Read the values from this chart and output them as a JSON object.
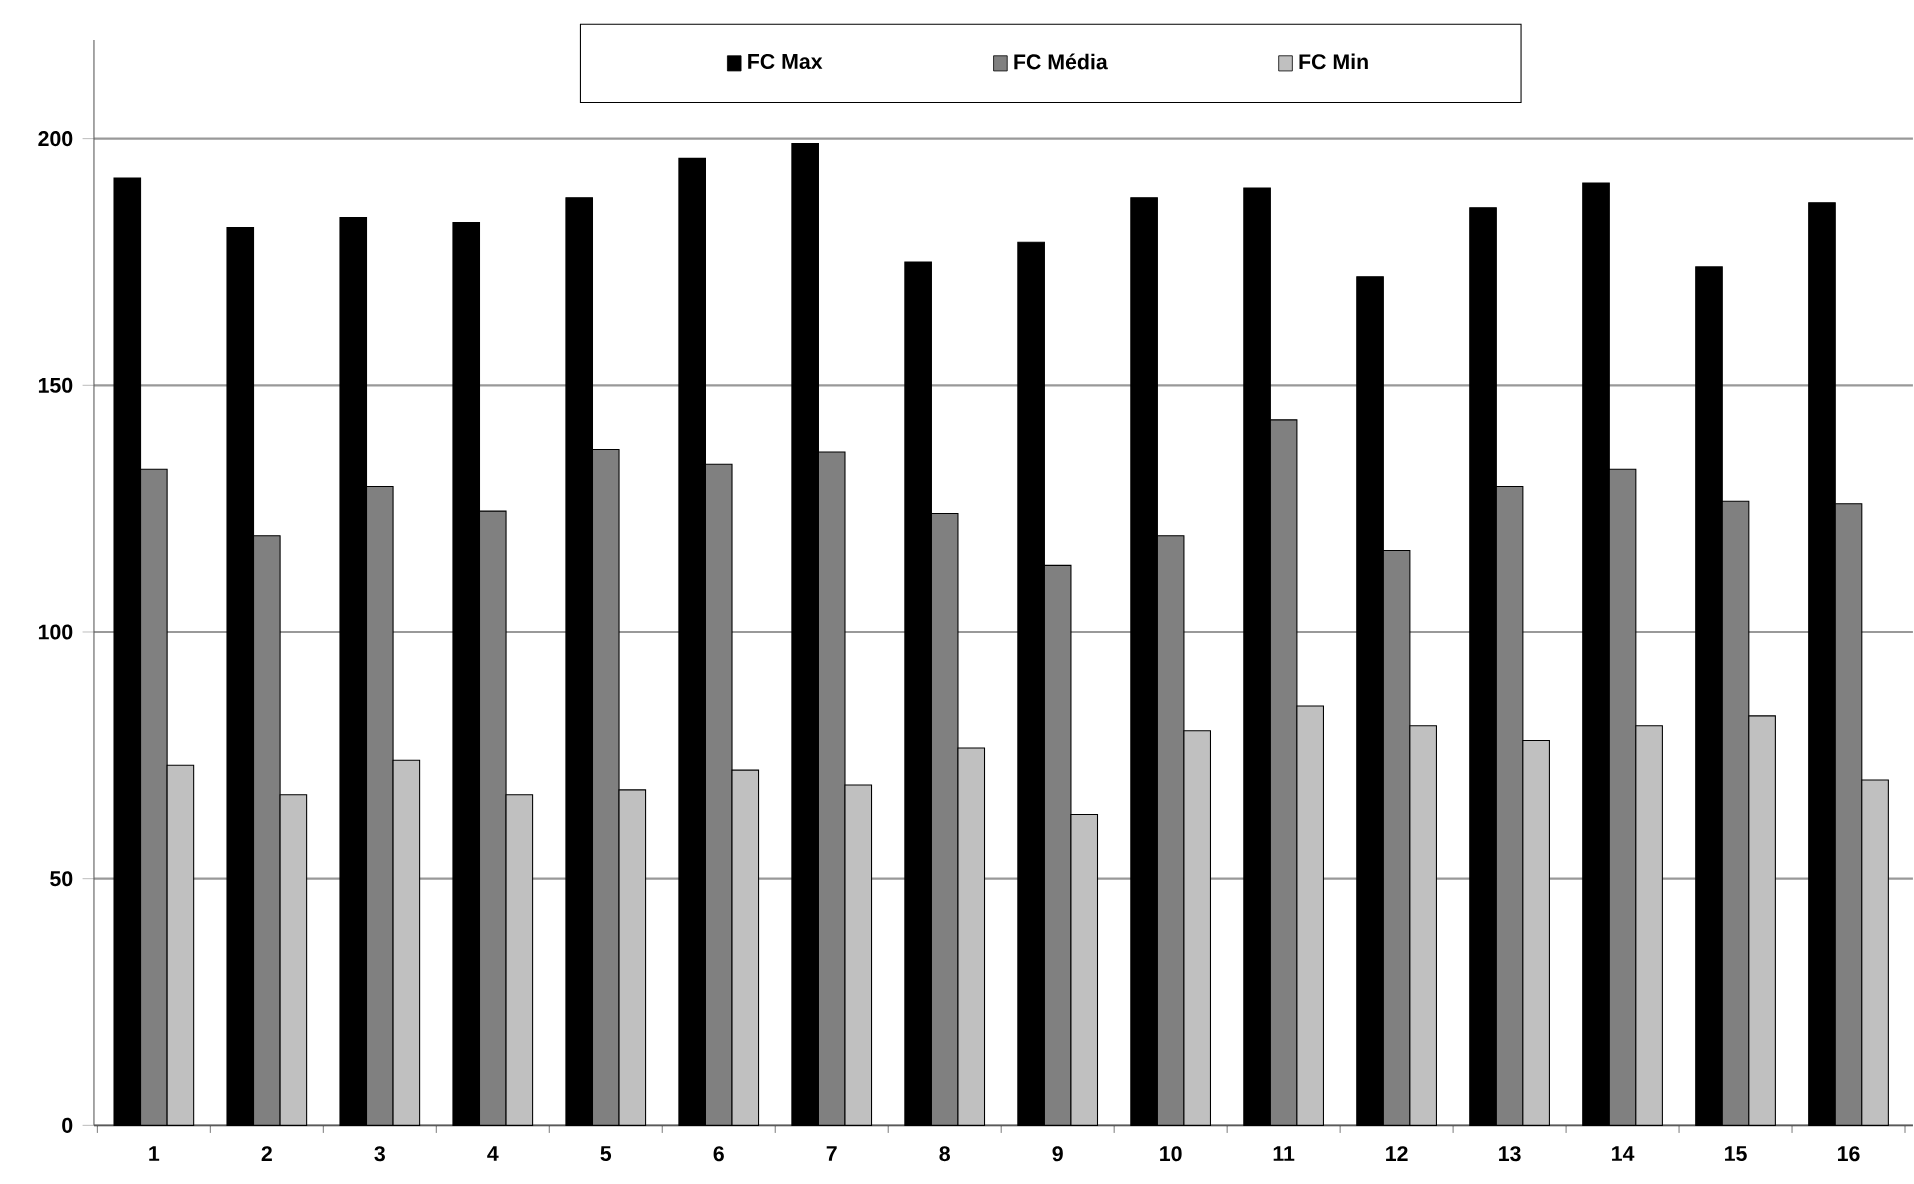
{
  "chart_data": {
    "type": "bar",
    "categories": [
      "1",
      "2",
      "3",
      "4",
      "5",
      "6",
      "7",
      "8",
      "9",
      "10",
      "11",
      "12",
      "13",
      "14",
      "15",
      "16"
    ],
    "series": [
      {
        "name": "FC Max",
        "color": "#000000",
        "values": [
          192,
          182,
          184,
          183,
          188,
          196,
          199,
          175,
          179,
          188,
          190,
          172,
          186,
          191,
          174,
          187
        ]
      },
      {
        "name": "FC Média",
        "color": "#808080",
        "values": [
          133,
          119.5,
          129.5,
          124.5,
          137,
          134,
          136.5,
          124,
          113.5,
          119.5,
          143,
          116.5,
          129.5,
          133,
          126.5,
          126
        ]
      },
      {
        "name": "FC Min",
        "color": "#c0c0c0",
        "values": [
          73,
          67,
          74,
          67,
          68,
          72,
          69,
          76.5,
          63,
          80,
          85,
          81,
          78,
          81,
          83,
          70
        ]
      }
    ],
    "ylim": [
      0,
      220
    ],
    "yticks": [
      0,
      50,
      100,
      150,
      200
    ],
    "grid": "y",
    "legend": "top"
  }
}
